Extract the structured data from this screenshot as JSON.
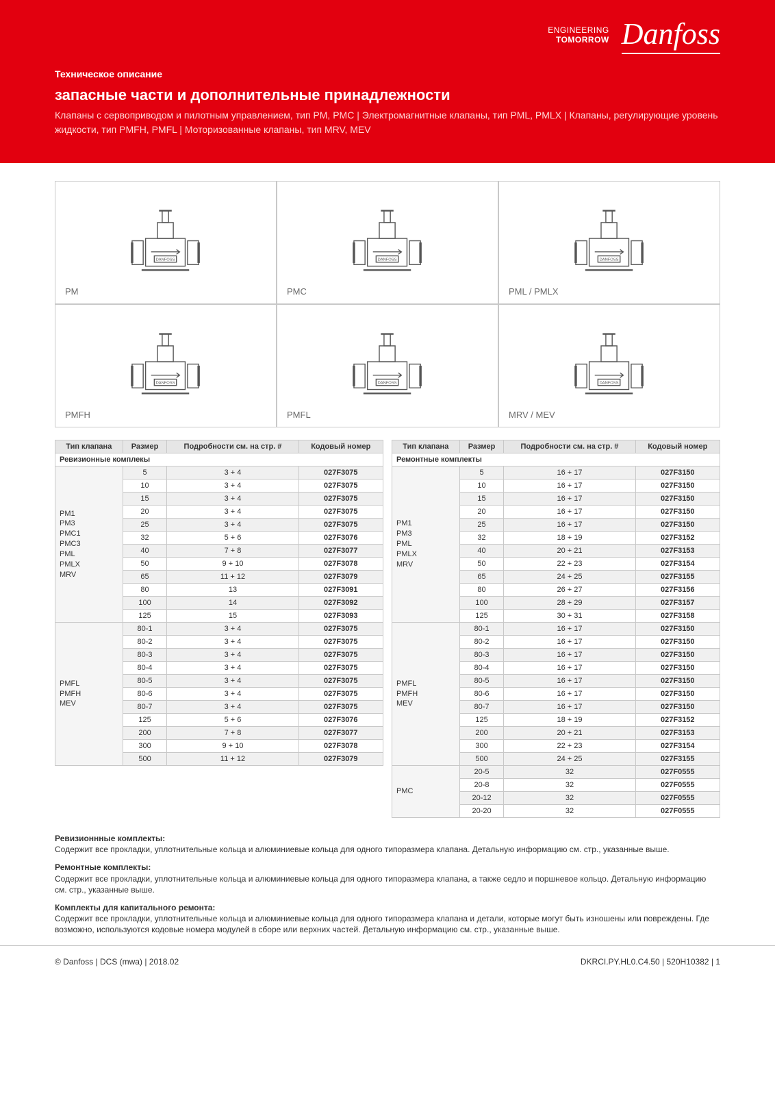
{
  "brand": {
    "engineering_line1": "ENGINEERING",
    "engineering_line2": "TOMORROW",
    "logo_text": "Danfoss",
    "logo_color": "#ffffff"
  },
  "hero": {
    "bg_color": "#e2000f",
    "doc_type": "Техническое описание",
    "title": "запасные части и дополнительные принадлежности",
    "subtitle": "Клапаны с сервоприводом и пилотным управлением, тип PM, PMC  |  Электромагнитные клапаны, тип PML, PMLX  |  Клапаны, регулирующие уровень жидкости, тип PMFH, PMFL  |  Моторизованные клапаны, тип MRV, MEV"
  },
  "valves": [
    {
      "label": "PM"
    },
    {
      "label": "PMC"
    },
    {
      "label": "PML / PMLX"
    },
    {
      "label": "PMFH"
    },
    {
      "label": "PMFL"
    },
    {
      "label": "MRV / MEV"
    }
  ],
  "table_headers": {
    "type": "Тип клапана",
    "size": "Размер",
    "details": "Подробности см. на стр. #",
    "code": "Кодовый номер"
  },
  "left_table": {
    "section_title": "Ревизионные комплекы",
    "groups": [
      {
        "type": "PM1\nPM3\nPMC1\nPMC3\nPML\nPMLX\nMRV",
        "rows": [
          {
            "size": "5",
            "details": "3 + 4",
            "code": "027F3075"
          },
          {
            "size": "10",
            "details": "3 + 4",
            "code": "027F3075"
          },
          {
            "size": "15",
            "details": "3 + 4",
            "code": "027F3075"
          },
          {
            "size": "20",
            "details": "3 + 4",
            "code": "027F3075"
          },
          {
            "size": "25",
            "details": "3 + 4",
            "code": "027F3075"
          },
          {
            "size": "32",
            "details": "5 + 6",
            "code": "027F3076"
          },
          {
            "size": "40",
            "details": "7 + 8",
            "code": "027F3077"
          },
          {
            "size": "50",
            "details": "9 + 10",
            "code": "027F3078"
          },
          {
            "size": "65",
            "details": "11 + 12",
            "code": "027F3079"
          },
          {
            "size": "80",
            "details": "13",
            "code": "027F3091"
          },
          {
            "size": "100",
            "details": "14",
            "code": "027F3092"
          },
          {
            "size": "125",
            "details": "15",
            "code": "027F3093"
          }
        ]
      },
      {
        "type": "PMFL\nPMFH\nMEV",
        "rows": [
          {
            "size": "80-1",
            "details": "3 + 4",
            "code": "027F3075"
          },
          {
            "size": "80-2",
            "details": "3 + 4",
            "code": "027F3075"
          },
          {
            "size": "80-3",
            "details": "3 + 4",
            "code": "027F3075"
          },
          {
            "size": "80-4",
            "details": "3 + 4",
            "code": "027F3075"
          },
          {
            "size": "80-5",
            "details": "3 + 4",
            "code": "027F3075"
          },
          {
            "size": "80-6",
            "details": "3 + 4",
            "code": "027F3075"
          },
          {
            "size": "80-7",
            "details": "3 + 4",
            "code": "027F3075"
          },
          {
            "size": "125",
            "details": "5 + 6",
            "code": "027F3076"
          },
          {
            "size": "200",
            "details": "7 + 8",
            "code": "027F3077"
          },
          {
            "size": "300",
            "details": "9 + 10",
            "code": "027F3078"
          },
          {
            "size": "500",
            "details": "11 + 12",
            "code": "027F3079"
          }
        ]
      }
    ]
  },
  "right_table": {
    "section_title": "Ремонтные комплекты",
    "groups": [
      {
        "type": "PM1\nPM3\nPML\nPMLX\nMRV",
        "rows": [
          {
            "size": "5",
            "details": "16 + 17",
            "code": "027F3150"
          },
          {
            "size": "10",
            "details": "16 + 17",
            "code": "027F3150"
          },
          {
            "size": "15",
            "details": "16 + 17",
            "code": "027F3150"
          },
          {
            "size": "20",
            "details": "16 + 17",
            "code": "027F3150"
          },
          {
            "size": "25",
            "details": "16 + 17",
            "code": "027F3150"
          },
          {
            "size": "32",
            "details": "18 + 19",
            "code": "027F3152"
          },
          {
            "size": "40",
            "details": "20 + 21",
            "code": "027F3153"
          },
          {
            "size": "50",
            "details": "22 + 23",
            "code": "027F3154"
          },
          {
            "size": "65",
            "details": "24 + 25",
            "code": "027F3155"
          },
          {
            "size": "80",
            "details": "26 + 27",
            "code": "027F3156"
          },
          {
            "size": "100",
            "details": "28 + 29",
            "code": "027F3157"
          },
          {
            "size": "125",
            "details": "30 + 31",
            "code": "027F3158"
          }
        ]
      },
      {
        "type": "PMFL\nPMFH\nMEV",
        "rows": [
          {
            "size": "80-1",
            "details": "16 + 17",
            "code": "027F3150"
          },
          {
            "size": "80-2",
            "details": "16 + 17",
            "code": "027F3150"
          },
          {
            "size": "80-3",
            "details": "16 + 17",
            "code": "027F3150"
          },
          {
            "size": "80-4",
            "details": "16 + 17",
            "code": "027F3150"
          },
          {
            "size": "80-5",
            "details": "16 + 17",
            "code": "027F3150"
          },
          {
            "size": "80-6",
            "details": "16 + 17",
            "code": "027F3150"
          },
          {
            "size": "80-7",
            "details": "16 + 17",
            "code": "027F3150"
          },
          {
            "size": "125",
            "details": "18 + 19",
            "code": "027F3152"
          },
          {
            "size": "200",
            "details": "20 + 21",
            "code": "027F3153"
          },
          {
            "size": "300",
            "details": "22 + 23",
            "code": "027F3154"
          },
          {
            "size": "500",
            "details": "24 + 25",
            "code": "027F3155"
          }
        ]
      },
      {
        "type": "PMC",
        "rows": [
          {
            "size": "20-5",
            "details": "32",
            "code": "027F0555"
          },
          {
            "size": "20-8",
            "details": "32",
            "code": "027F0555"
          },
          {
            "size": "20-12",
            "details": "32",
            "code": "027F0555"
          },
          {
            "size": "20-20",
            "details": "32",
            "code": "027F0555"
          }
        ]
      }
    ]
  },
  "notes": {
    "n1_title": "Ревизионнные комплекты:",
    "n1_text": "Содержит все прокладки, уплотнительные кольца и алюминиевые кольца для одного типоразмера клапана.  Детальную информацию см. стр., указанные выше.",
    "n2_title": "Ремонтные комплекты:",
    "n2_text": "Содержит все прокладки, уплотнительные кольца и алюминиевые кольца для одного типоразмера клапана, а также седло и поршневое кольцо. Детальную информацию см. стр., указанные выше.",
    "n3_title": "Комплекты для капитального ремонта:",
    "n3_text": "Содержит все прокладки, уплотнительные кольца и алюминиевые кольца для одного типоразмера клапана и детали, которые могут быть изношены или повреждены. Где возможно, используются кодовые номера модулей в сборе или верхних частей. Детальную информацию см. стр., указанные выше."
  },
  "footer": {
    "left": "© Danfoss | DCS (mwa) | 2018.02",
    "right": "DKRCI.PY.HL0.C4.50 | 520H10382 | 1"
  },
  "styling": {
    "table_border_color": "#c8c8c8",
    "header_bg": "#e6e6e6",
    "alt_row_bg": "#f0f0f0",
    "text_color": "#333333",
    "body_font_size": 11
  }
}
